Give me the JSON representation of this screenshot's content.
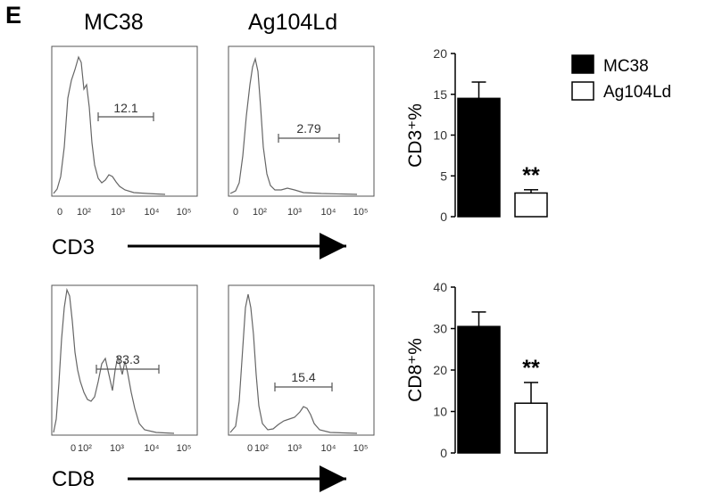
{
  "panel_label": "E",
  "column_titles": [
    "MC38",
    "Ag104Ld"
  ],
  "chart_data": [
    {
      "type": "histogram",
      "marker": "CD3",
      "sample": "MC38",
      "gate_value": "12.1",
      "x_ticks": [
        "0",
        "10²",
        "10³",
        "10⁴",
        "10⁵"
      ]
    },
    {
      "type": "histogram",
      "marker": "CD3",
      "sample": "Ag104Ld",
      "gate_value": "2.79",
      "x_ticks": [
        "0",
        "10²",
        "10³",
        "10⁴",
        "10⁵"
      ]
    },
    {
      "type": "histogram",
      "marker": "CD8",
      "sample": "MC38",
      "gate_value": "33.3",
      "x_ticks": [
        "0",
        "10²",
        "10³",
        "10⁴",
        "10⁵"
      ]
    },
    {
      "type": "histogram",
      "marker": "CD8",
      "sample": "Ag104Ld",
      "gate_value": "15.4",
      "x_ticks": [
        "0",
        "10²",
        "10³",
        "10⁴",
        "10⁵"
      ]
    },
    {
      "type": "bar",
      "ylabel": "CD3⁺%",
      "ylim": [
        0,
        20
      ],
      "yticks": [
        0,
        5,
        10,
        15,
        20
      ],
      "series": [
        {
          "name": "MC38",
          "value": 14.5,
          "error": 2.0,
          "fill": "#000000"
        },
        {
          "name": "Ag104Ld",
          "value": 2.9,
          "error": 0.4,
          "fill": "#ffffff"
        }
      ],
      "annotation": "**"
    },
    {
      "type": "bar",
      "ylabel": "CD8⁺%",
      "ylim": [
        0,
        40
      ],
      "yticks": [
        0,
        10,
        20,
        30,
        40
      ],
      "series": [
        {
          "name": "MC38",
          "value": 30.5,
          "error": 3.5,
          "fill": "#000000"
        },
        {
          "name": "Ag104Ld",
          "value": 12.0,
          "error": 5.0,
          "fill": "#ffffff"
        }
      ],
      "annotation": "**"
    }
  ],
  "legend": [
    {
      "name": "MC38",
      "fill": "#000000"
    },
    {
      "name": "Ag104Ld",
      "fill": "#ffffff"
    }
  ],
  "axis_names": [
    "CD3",
    "CD8"
  ]
}
